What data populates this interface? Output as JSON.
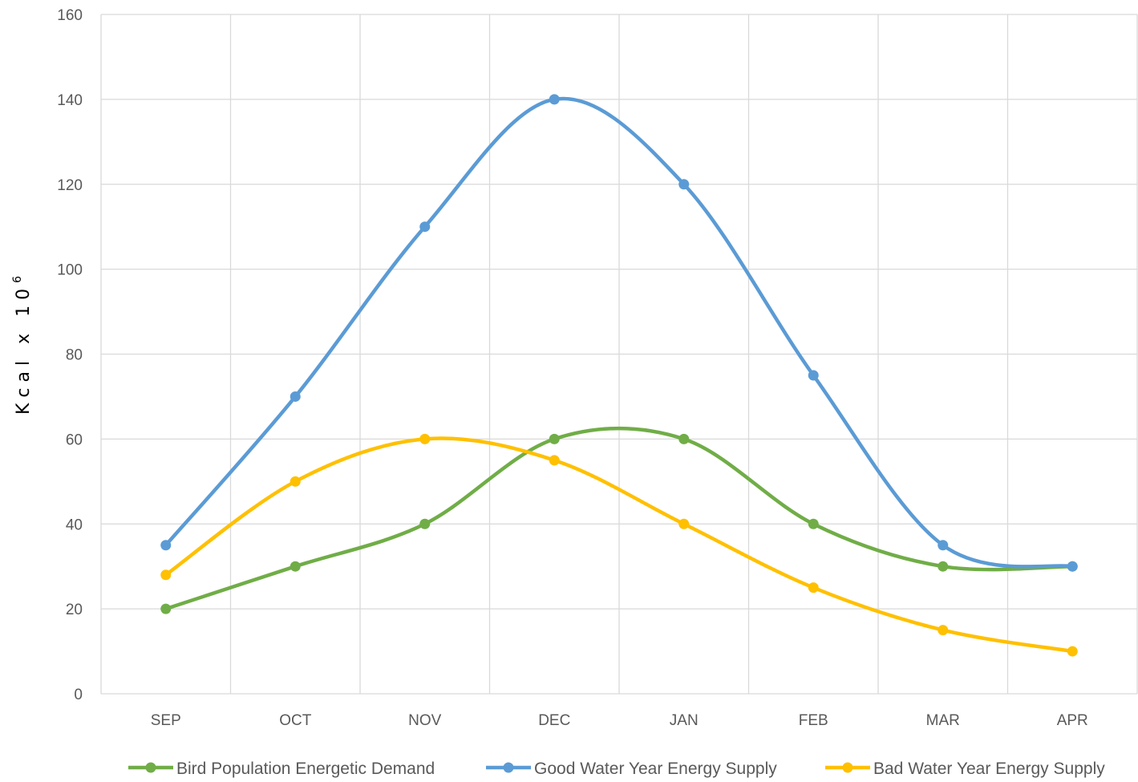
{
  "chart_data": {
    "type": "line",
    "smooth": true,
    "categories": [
      "SEP",
      "OCT",
      "NOV",
      "DEC",
      "JAN",
      "FEB",
      "MAR",
      "APR"
    ],
    "ylabel": "Kcal x 10",
    "ylabel_superscript": "6",
    "ylim": [
      0,
      160
    ],
    "yticks": [
      0,
      20,
      40,
      60,
      80,
      100,
      120,
      140,
      160
    ],
    "grid": true,
    "legend_position": "bottom",
    "series": [
      {
        "name": "Bird Population Energetic Demand",
        "color": "#70ad47",
        "values": [
          20,
          30,
          40,
          60,
          60,
          40,
          30,
          30
        ]
      },
      {
        "name": "Good Water Year Energy Supply",
        "color": "#5b9bd5",
        "values": [
          35,
          70,
          110,
          140,
          120,
          75,
          35,
          30
        ]
      },
      {
        "name": "Bad Water Year Energy Supply",
        "color": "#ffc000",
        "values": [
          28,
          50,
          60,
          55,
          40,
          25,
          15,
          10
        ]
      }
    ]
  }
}
